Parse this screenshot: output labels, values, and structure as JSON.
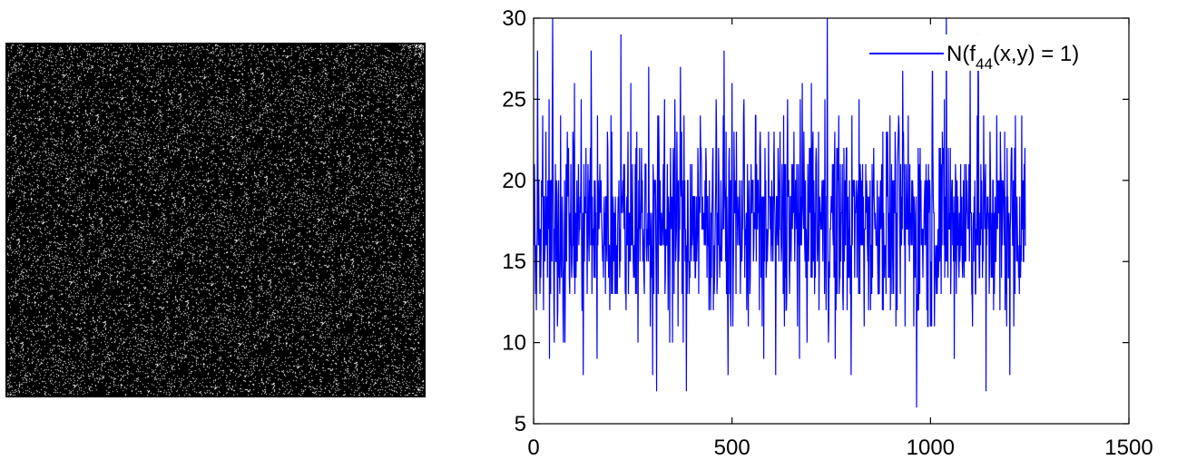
{
  "texture_panel": {
    "kind": "binary-texture-image",
    "foreground": "#000000",
    "background": "#ffffff"
  },
  "chart_data": {
    "type": "line",
    "title": "",
    "xlabel": "",
    "ylabel": "",
    "xlim": [
      0,
      1500
    ],
    "ylim": [
      5,
      30
    ],
    "xticks": [
      0,
      500,
      1000,
      1500
    ],
    "yticks": [
      5,
      10,
      15,
      20,
      25,
      30
    ],
    "xtick_labels": [
      "0",
      "500",
      "1000",
      "1500"
    ],
    "ytick_labels": [
      "5",
      "10",
      "15",
      "20",
      "25",
      "30"
    ],
    "grid": false,
    "legend": {
      "position": "top-right",
      "label_main": "N(f",
      "label_sub": "44",
      "label_tail": "(x,y) = 1)"
    },
    "series": [
      {
        "name": "N(f44(x,y) = 1)",
        "color": "#0000ff",
        "x_start": 1,
        "x_step": 1,
        "n_points": 1240,
        "mean": 17.5,
        "min": 6,
        "max": 30,
        "values_sampled": [
          {
            "x": 10,
            "y": 28
          },
          {
            "x": 25,
            "y": 12
          },
          {
            "x": 40,
            "y": 9
          },
          {
            "x": 48,
            "y": 30
          },
          {
            "x": 75,
            "y": 10
          },
          {
            "x": 125,
            "y": 8
          },
          {
            "x": 145,
            "y": 28
          },
          {
            "x": 160,
            "y": 9
          },
          {
            "x": 220,
            "y": 29
          },
          {
            "x": 245,
            "y": 26
          },
          {
            "x": 290,
            "y": 27
          },
          {
            "x": 300,
            "y": 8
          },
          {
            "x": 310,
            "y": 7
          },
          {
            "x": 330,
            "y": 25
          },
          {
            "x": 370,
            "y": 27
          },
          {
            "x": 385,
            "y": 7
          },
          {
            "x": 420,
            "y": 24
          },
          {
            "x": 460,
            "y": 25
          },
          {
            "x": 480,
            "y": 28
          },
          {
            "x": 490,
            "y": 8
          },
          {
            "x": 530,
            "y": 25
          },
          {
            "x": 560,
            "y": 24
          },
          {
            "x": 580,
            "y": 9
          },
          {
            "x": 610,
            "y": 8
          },
          {
            "x": 640,
            "y": 25
          },
          {
            "x": 700,
            "y": 26
          },
          {
            "x": 740,
            "y": 30
          },
          {
            "x": 760,
            "y": 9
          },
          {
            "x": 800,
            "y": 8
          },
          {
            "x": 880,
            "y": 23
          },
          {
            "x": 930,
            "y": 27
          },
          {
            "x": 965,
            "y": 6
          },
          {
            "x": 1005,
            "y": 28
          },
          {
            "x": 1040,
            "y": 30
          },
          {
            "x": 1060,
            "y": 9
          },
          {
            "x": 1100,
            "y": 27
          },
          {
            "x": 1120,
            "y": 29
          },
          {
            "x": 1140,
            "y": 7
          },
          {
            "x": 1200,
            "y": 8
          },
          {
            "x": 1230,
            "y": 24
          }
        ]
      }
    ]
  }
}
